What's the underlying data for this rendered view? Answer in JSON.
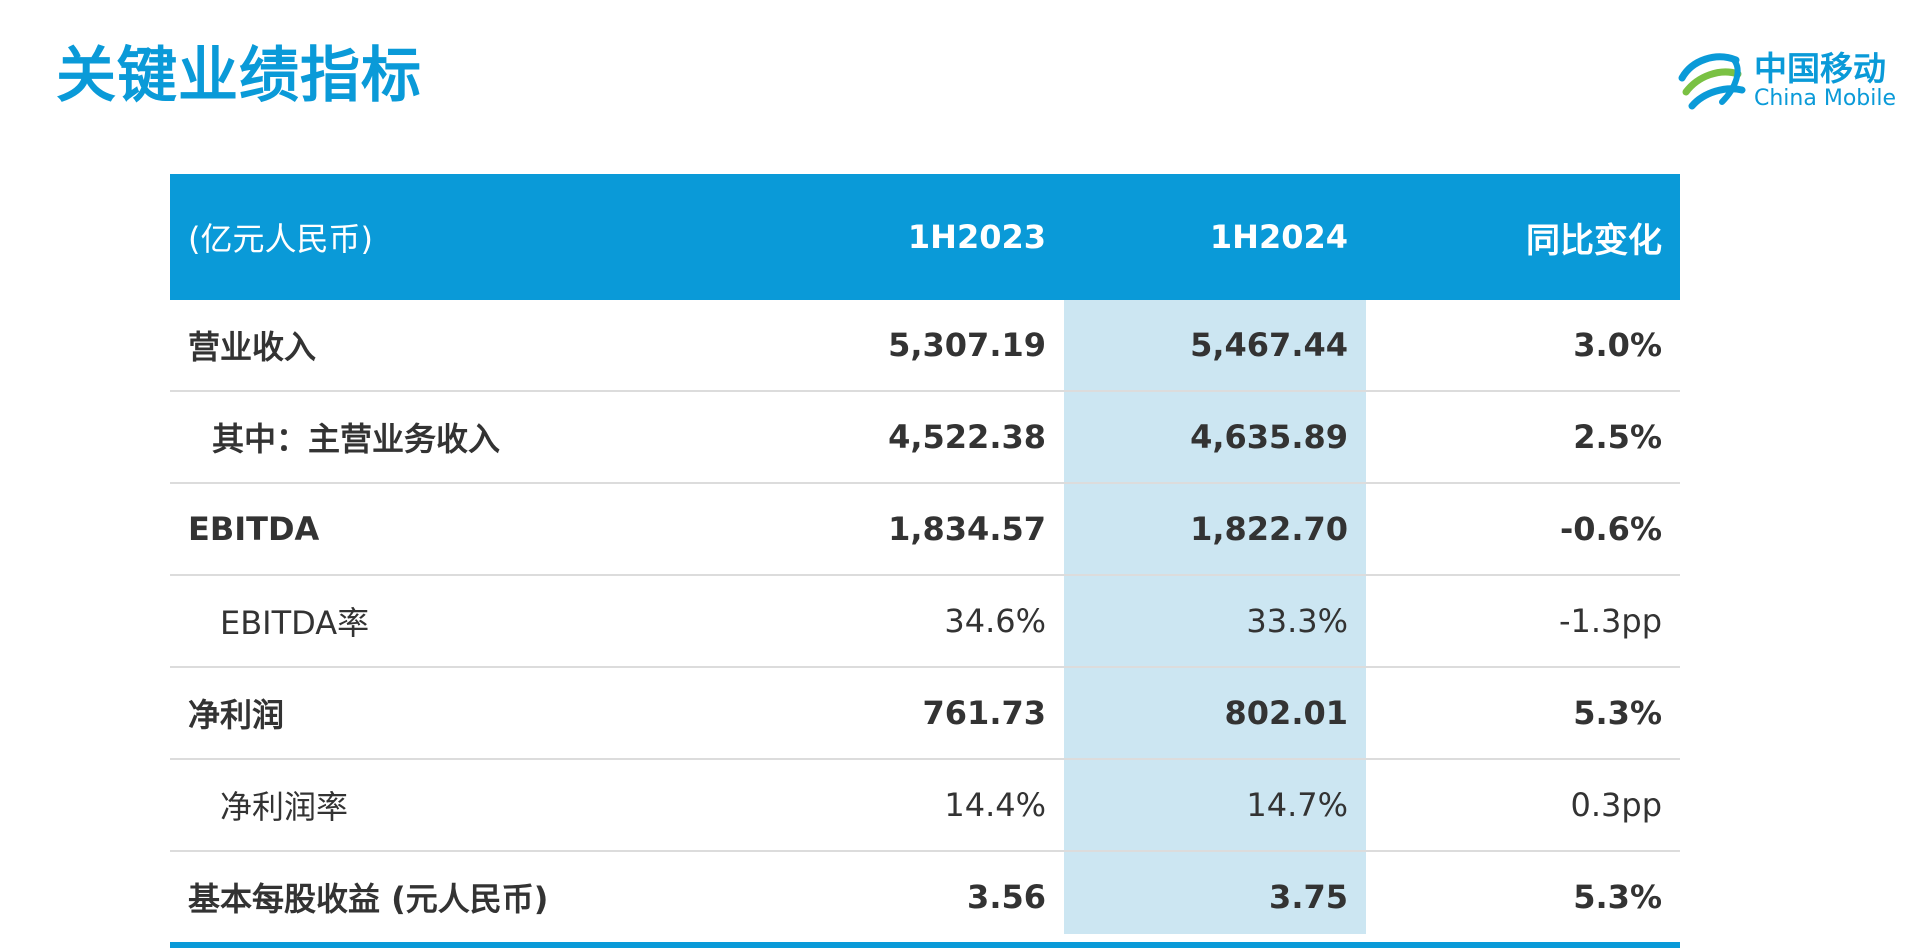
{
  "page_title": "关键业绩指标",
  "logo": {
    "cn": "中国移动",
    "en": "China Mobile"
  },
  "colors": {
    "accent": "#0a9ad8",
    "highlight_column": "#cce6f2",
    "text": "#333333"
  },
  "table": {
    "headers": [
      "(亿元人民币)",
      "1H2023",
      "1H2024",
      "同比变化"
    ],
    "rows": [
      {
        "label": "营业收入",
        "v2023": "5,307.19",
        "v2024": "5,467.44",
        "yoy": "3.0%"
      },
      {
        "label": "其中：主营业务收入",
        "v2023": "4,522.38",
        "v2024": "4,635.89",
        "yoy": "2.5%"
      },
      {
        "label": "EBITDA",
        "v2023": "1,834.57",
        "v2024": "1,822.70",
        "yoy": "-0.6%"
      },
      {
        "label": "EBITDA率",
        "v2023": "34.6%",
        "v2024": "33.3%",
        "yoy": "-1.3pp"
      },
      {
        "label": "净利润",
        "v2023": "761.73",
        "v2024": "802.01",
        "yoy": "5.3%"
      },
      {
        "label": "净利润率",
        "v2023": "14.4%",
        "v2024": "14.7%",
        "yoy": "0.3pp"
      },
      {
        "label": "基本每股收益 (元人民币)",
        "v2023": "3.56",
        "v2024": "3.75",
        "yoy": "5.3%"
      }
    ]
  }
}
